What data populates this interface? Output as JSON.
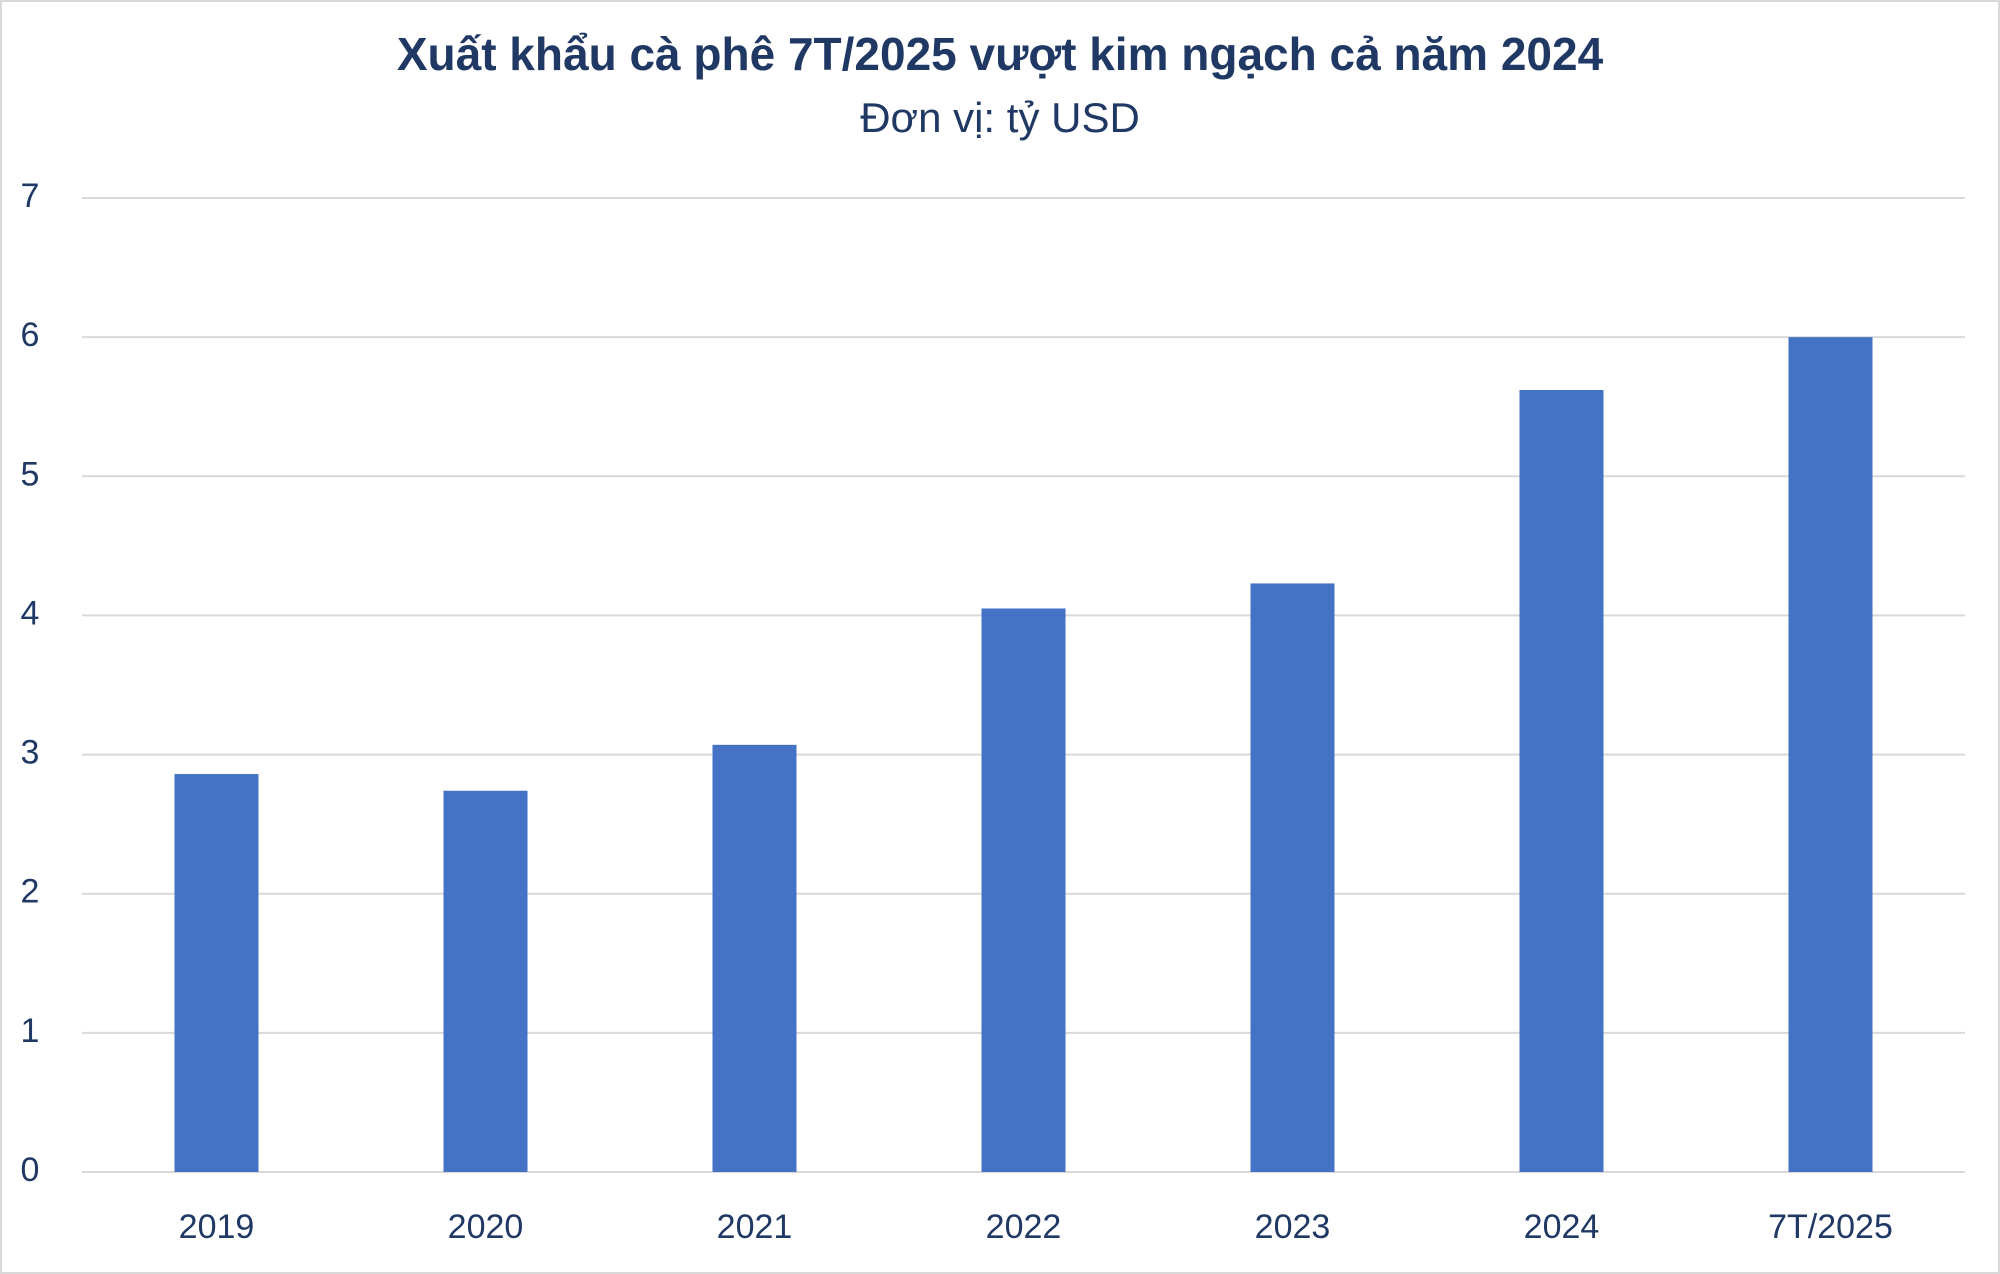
{
  "chart_data": {
    "type": "bar",
    "title": "Xuất khẩu cà phê 7T/2025 vượt kim ngạch cả năm 2024",
    "subtitle": "Đơn vị: tỷ USD",
    "categories": [
      "2019",
      "2020",
      "2021",
      "2022",
      "2023",
      "2024",
      "7T/2025"
    ],
    "values": [
      2.86,
      2.74,
      3.07,
      4.05,
      4.23,
      5.62,
      6.0
    ],
    "color": "#4472c4",
    "ylim": [
      0,
      7
    ],
    "yticks": [
      0,
      1,
      2,
      3,
      4,
      5,
      6,
      7
    ],
    "grid": true
  }
}
